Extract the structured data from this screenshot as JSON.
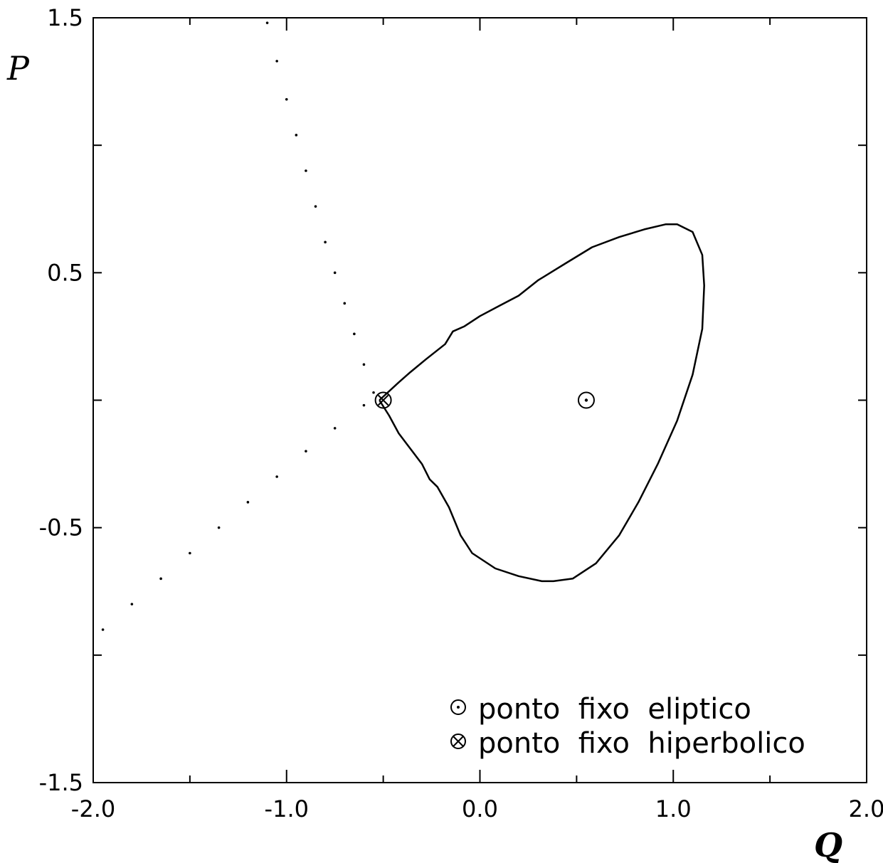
{
  "chart_data": {
    "type": "scatter",
    "title": "",
    "xlabel": "Q",
    "ylabel": "P",
    "xlim": [
      -2.0,
      2.0
    ],
    "ylim": [
      -1.5,
      1.5
    ],
    "grid": false,
    "legend_position": "bottom-right",
    "x_ticks": [
      -2.0,
      -1.0,
      0.0,
      1.0,
      2.0
    ],
    "x_tick_labels": [
      "-2.0",
      "-1.0",
      "0.0",
      "1.0",
      "2.0"
    ],
    "y_ticks": [
      -1.5,
      -0.5,
      0.5,
      1.5
    ],
    "y_tick_labels": [
      "-1.5",
      "-0.5",
      "0.5",
      "1.5"
    ],
    "legend": [
      {
        "symbol": "circle-dot",
        "label": "ponto  fixo  eliptico"
      },
      {
        "symbol": "circle-cross",
        "label": "ponto  fixo  hiperbolico"
      }
    ],
    "series": [
      {
        "style": "line",
        "x": [
          -0.52,
          -0.42,
          -0.36,
          -0.28,
          -0.18,
          -0.14,
          -0.08,
          0.0,
          0.1,
          0.2,
          0.3,
          0.45,
          0.58,
          0.72,
          0.85,
          0.96,
          1.02,
          1.1,
          1.15,
          1.16,
          1.15,
          1.1,
          1.02,
          0.92,
          0.82,
          0.72,
          0.6,
          0.48,
          0.38,
          0.32,
          0.2,
          0.08,
          -0.04,
          -0.1,
          -0.16,
          -0.22,
          -0.26,
          -0.3,
          -0.36,
          -0.42,
          -0.47,
          -0.52
        ],
        "y": [
          0.0,
          0.07,
          0.11,
          0.16,
          0.22,
          0.27,
          0.29,
          0.33,
          0.37,
          0.41,
          0.47,
          0.54,
          0.6,
          0.64,
          0.67,
          0.69,
          0.69,
          0.66,
          0.57,
          0.45,
          0.28,
          0.1,
          -0.08,
          -0.25,
          -0.4,
          -0.53,
          -0.64,
          -0.7,
          -0.71,
          -0.71,
          -0.69,
          -0.66,
          -0.6,
          -0.53,
          -0.42,
          -0.34,
          -0.31,
          -0.25,
          -0.19,
          -0.13,
          -0.06,
          0.0
        ]
      },
      {
        "style": "dots",
        "x": [
          -1.1,
          -1.05,
          -1.0,
          -0.95,
          -0.9,
          -0.85,
          -0.8,
          -0.75,
          -0.7,
          -0.65,
          -0.6,
          -0.55
        ],
        "y": [
          1.48,
          1.33,
          1.18,
          1.04,
          0.9,
          0.76,
          0.62,
          0.5,
          0.38,
          0.26,
          0.14,
          0.03
        ]
      },
      {
        "style": "dots",
        "x": [
          -1.95,
          -1.8,
          -1.65,
          -1.5,
          -1.35,
          -1.2,
          -1.05,
          -0.9,
          -0.75,
          -0.6
        ],
        "y": [
          -0.9,
          -0.8,
          -0.7,
          -0.6,
          -0.5,
          -0.4,
          -0.3,
          -0.2,
          -0.11,
          -0.02
        ]
      }
    ],
    "annotations": [
      {
        "symbol": "circle-dot",
        "x": 0.55,
        "y": 0.0
      },
      {
        "symbol": "circle-cross",
        "x": -0.5,
        "y": 0.0
      }
    ]
  }
}
